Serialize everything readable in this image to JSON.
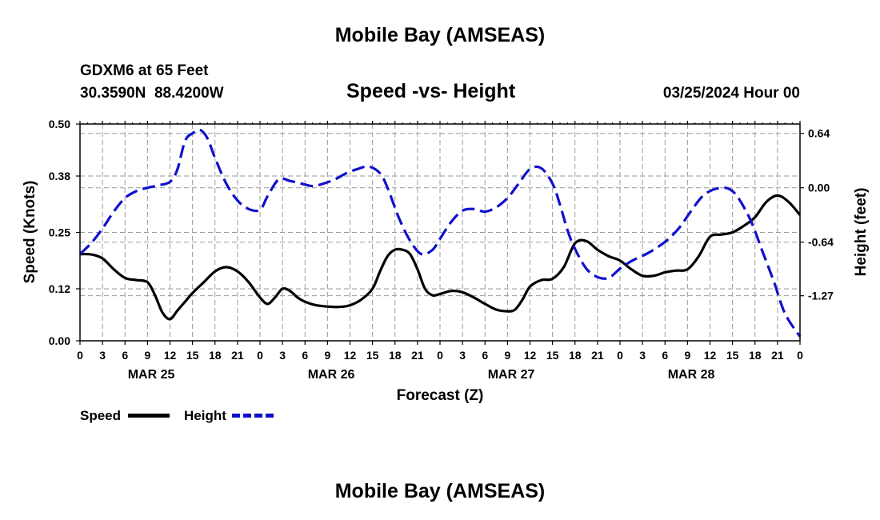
{
  "header": {
    "title": "Mobile Bay (AMSEAS)",
    "station": "GDXM6 at 65 Feet",
    "coords": "30.3590N  88.4200W",
    "date": "03/25/2024 Hour 00"
  },
  "footer": {
    "title": "Mobile Bay (AMSEAS)"
  },
  "chart_data": {
    "type": "line",
    "title": "Speed -vs- Height",
    "xlabel": "Forecast (Z)",
    "ylabel": "Speed (Knots)",
    "y2label": "Height (feet)",
    "x_range_hours": [
      0,
      96
    ],
    "ylim": [
      0,
      0.5
    ],
    "y2lim": [
      -1.8,
      0.75
    ],
    "y_ticks": [
      "0.00",
      "0.12",
      "0.25",
      "0.38",
      "0.50"
    ],
    "y2_ticks": [
      {
        "value": 0.64,
        "label": "0.64"
      },
      {
        "value": 0.0,
        "label": "0.00"
      },
      {
        "value": -0.64,
        "label": "-0.64"
      },
      {
        "value": -1.27,
        "label": "-1.27"
      }
    ],
    "x_tick_labels": [
      "0",
      "3",
      "6",
      "9",
      "12",
      "15",
      "18",
      "21",
      "0",
      "3",
      "6",
      "9",
      "12",
      "15",
      "18",
      "21",
      "0",
      "3",
      "6",
      "9",
      "12",
      "15",
      "18",
      "21",
      "0",
      "3",
      "6",
      "9",
      "12",
      "15",
      "18",
      "21",
      "0"
    ],
    "date_labels": [
      {
        "label": "MAR 25",
        "hour": 9.5
      },
      {
        "label": "MAR 26",
        "hour": 33.5
      },
      {
        "label": "MAR 27",
        "hour": 57.5
      },
      {
        "label": "MAR 28",
        "hour": 81.5
      }
    ],
    "series": [
      {
        "name": "Speed",
        "axis": "left",
        "color": "#000000",
        "style": "solid",
        "hours": [
          0,
          1.5,
          3,
          4.5,
          6,
          7.5,
          9,
          10,
          11,
          12,
          13,
          14,
          15,
          16.5,
          18,
          19.5,
          21,
          22.5,
          24,
          25,
          26,
          27,
          28,
          29,
          30,
          31.5,
          33,
          34.5,
          36,
          37.5,
          39,
          40,
          41,
          42,
          43,
          44,
          45,
          46,
          47,
          48,
          49.5,
          51,
          52.5,
          54,
          55.5,
          57,
          58,
          59,
          60,
          61.5,
          63,
          64.5,
          66,
          67.5,
          69,
          70.5,
          72,
          73.5,
          75,
          76.5,
          78,
          79.5,
          81,
          82.5,
          84,
          85.5,
          87,
          88.5,
          90,
          91.5,
          93,
          94.5,
          96
        ],
        "values": [
          0.2,
          0.199,
          0.19,
          0.165,
          0.145,
          0.14,
          0.135,
          0.105,
          0.065,
          0.05,
          0.07,
          0.09,
          0.11,
          0.135,
          0.16,
          0.17,
          0.16,
          0.135,
          0.1,
          0.085,
          0.1,
          0.12,
          0.115,
          0.1,
          0.09,
          0.082,
          0.079,
          0.078,
          0.082,
          0.095,
          0.12,
          0.16,
          0.195,
          0.21,
          0.21,
          0.2,
          0.165,
          0.12,
          0.105,
          0.108,
          0.115,
          0.112,
          0.1,
          0.085,
          0.072,
          0.068,
          0.072,
          0.095,
          0.125,
          0.14,
          0.143,
          0.17,
          0.225,
          0.23,
          0.21,
          0.195,
          0.185,
          0.165,
          0.15,
          0.15,
          0.158,
          0.162,
          0.165,
          0.195,
          0.24,
          0.245,
          0.25,
          0.265,
          0.285,
          0.32,
          0.335,
          0.32,
          0.29
        ]
      },
      {
        "name": "Height",
        "axis": "right",
        "color": "#1010cc",
        "style": "dashed",
        "hours": [
          0,
          1.5,
          3,
          4.5,
          6,
          7.5,
          9,
          10.5,
          12,
          13,
          14,
          15,
          16,
          17,
          18,
          19.5,
          21,
          22.5,
          24,
          25,
          26.5,
          28,
          29.5,
          31,
          32.5,
          34,
          35.5,
          37,
          38.5,
          40,
          41,
          42.5,
          44,
          45.5,
          47,
          48,
          49.5,
          51,
          52.5,
          54,
          55.5,
          57,
          58.5,
          60,
          61.5,
          63,
          64,
          65,
          66,
          67.5,
          69,
          70.5,
          72,
          73,
          74,
          75.5,
          77,
          78.5,
          80,
          81.5,
          83,
          84.5,
          86,
          87,
          88,
          89.5,
          91,
          92.5,
          94,
          96
        ],
        "values": [
          -0.78,
          -0.65,
          -0.48,
          -0.28,
          -0.12,
          -0.04,
          0.0,
          0.03,
          0.07,
          0.22,
          0.55,
          0.64,
          0.68,
          0.58,
          0.35,
          0.05,
          -0.15,
          -0.25,
          -0.26,
          -0.1,
          0.1,
          0.08,
          0.05,
          0.02,
          0.05,
          0.1,
          0.17,
          0.22,
          0.25,
          0.17,
          0.0,
          -0.35,
          -0.62,
          -0.78,
          -0.73,
          -0.6,
          -0.4,
          -0.27,
          -0.25,
          -0.28,
          -0.23,
          -0.12,
          0.05,
          0.22,
          0.23,
          0.05,
          -0.2,
          -0.5,
          -0.72,
          -0.95,
          -1.05,
          -1.06,
          -0.95,
          -0.89,
          -0.84,
          -0.78,
          -0.7,
          -0.6,
          -0.46,
          -0.27,
          -0.1,
          -0.02,
          0.0,
          -0.04,
          -0.15,
          -0.4,
          -0.75,
          -1.1,
          -1.48,
          -1.75
        ]
      }
    ]
  },
  "legend": [
    {
      "label": "Speed",
      "color": "#000000",
      "style": "solid"
    },
    {
      "label": "Height",
      "color": "#1010cc",
      "style": "dashed"
    }
  ]
}
